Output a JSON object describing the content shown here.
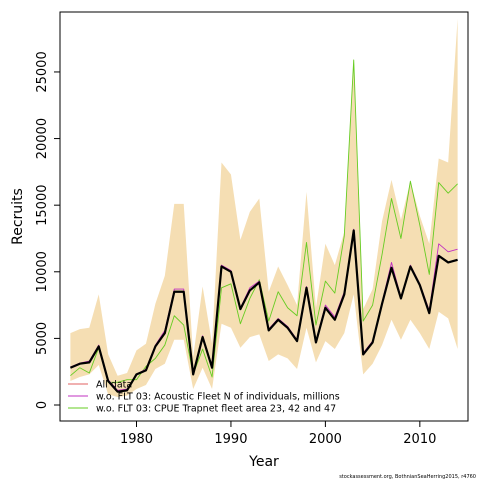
{
  "chart_data": {
    "type": "line",
    "xlabel": "Year",
    "ylabel": "Recruits",
    "xlim": [
      1971.9,
      2015.1
    ],
    "ylim": [
      -1200,
      29500
    ],
    "xticks": [
      1980,
      1990,
      2000,
      2010
    ],
    "yticks": [
      0,
      5000,
      10000,
      15000,
      20000,
      25000
    ],
    "grid": false,
    "legend_position": "bottom-left",
    "footnote": "stockassessment.org, BothnianSeaHerring2015, r4760",
    "years": [
      1973,
      1974,
      1975,
      1976,
      1977,
      1978,
      1979,
      1980,
      1981,
      1982,
      1983,
      1984,
      1985,
      1986,
      1987,
      1988,
      1989,
      1990,
      1991,
      1992,
      1993,
      1994,
      1995,
      1996,
      1997,
      1998,
      1999,
      2000,
      2001,
      2002,
      2003,
      2004,
      2005,
      2006,
      2007,
      2008,
      2009,
      2010,
      2011,
      2012,
      2013,
      2014
    ],
    "ci_band": {
      "color": "#f5deb3",
      "lower": [
        1800,
        2100,
        2300,
        3000,
        800,
        600,
        700,
        1200,
        1500,
        2700,
        3100,
        4900,
        4900,
        1200,
        2800,
        1200,
        6100,
        5800,
        4300,
        5100,
        5300,
        3300,
        3800,
        3500,
        2700,
        5800,
        3200,
        4800,
        4200,
        5400,
        8300,
        2300,
        3100,
        4500,
        6400,
        4900,
        6400,
        5400,
        4200,
        7000,
        6500,
        4200
      ],
      "upper": [
        5400,
        5700,
        5800,
        8300,
        3800,
        2200,
        2400,
        4100,
        4600,
        7600,
        9700,
        15100,
        15100,
        3600,
        8900,
        4600,
        18200,
        17300,
        12400,
        14500,
        15500,
        8500,
        10400,
        9000,
        7500,
        16000,
        7300,
        12100,
        10500,
        13000,
        25600,
        7200,
        8700,
        13800,
        16900,
        13900,
        16800,
        14200,
        12100,
        18500,
        18200,
        29000
      ]
    },
    "series": [
      {
        "name": "All data",
        "color": "#000000",
        "width": 2.2,
        "values": [
          2800,
          3100,
          3200,
          4400,
          1800,
          1000,
          1100,
          2300,
          2600,
          4400,
          5400,
          8500,
          8500,
          2300,
          5100,
          2800,
          10400,
          10000,
          7200,
          8600,
          9200,
          5600,
          6400,
          5800,
          4800,
          8800,
          4700,
          7300,
          6400,
          8300,
          13100,
          3800,
          4700,
          7600,
          10300,
          8000,
          10400,
          9000,
          6900,
          11200,
          10700,
          10900
        ]
      },
      {
        "name": "w.o. FLT 03: Acoustic Fleet   N of individuals, millions",
        "color": "#c030c0",
        "width": 0.9,
        "values": [
          2850,
          3150,
          3300,
          4500,
          1900,
          1100,
          1200,
          2300,
          2700,
          4500,
          5600,
          8700,
          8700,
          2400,
          5200,
          2900,
          10500,
          10100,
          7300,
          8800,
          9300,
          5700,
          6500,
          5900,
          4900,
          8900,
          4800,
          7500,
          6600,
          8500,
          13200,
          3900,
          4800,
          7700,
          10700,
          8100,
          10500,
          9100,
          7100,
          12100,
          11500,
          11700
        ]
      },
      {
        "name": "w.o. FLT 03: CPUE Trapnet fleet area 23, 42 and 47",
        "color": "#66cc22",
        "width": 0.9,
        "values": [
          2200,
          2800,
          2400,
          4300,
          1700,
          1700,
          1900,
          1900,
          2900,
          3500,
          4500,
          6700,
          6000,
          2300,
          4200,
          2100,
          8800,
          9100,
          6100,
          8000,
          9400,
          6300,
          8500,
          7300,
          6700,
          12200,
          6000,
          9300,
          8400,
          12700,
          25900,
          6300,
          7500,
          11300,
          15500,
          12500,
          16800,
          13500,
          9800,
          16700,
          15900,
          16600
        ]
      }
    ]
  }
}
